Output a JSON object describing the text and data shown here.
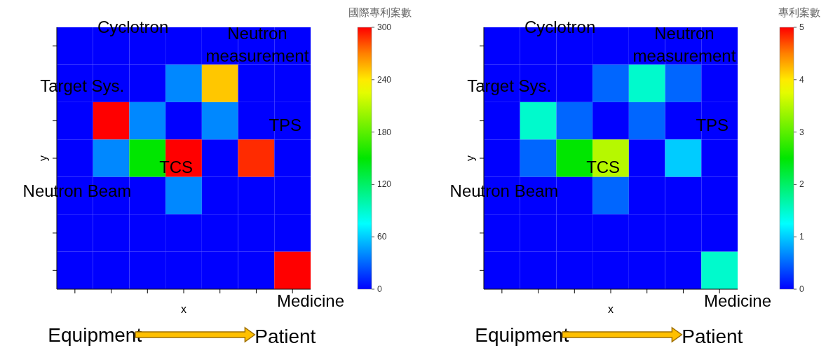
{
  "chart_data": [
    {
      "type": "heatmap",
      "xlabel": "x",
      "ylabel": "y",
      "clabel": "國際專利案數",
      "categories": [
        null,
        null,
        null,
        null,
        null,
        null,
        null
      ],
      "y_categories": [
        null,
        null,
        null,
        null,
        null,
        null,
        null
      ],
      "cells": [
        [
          0,
          0,
          0,
          0,
          0,
          0,
          0
        ],
        [
          0,
          0,
          0,
          40,
          250,
          0,
          0
        ],
        [
          0,
          320,
          40,
          0,
          40,
          0,
          0
        ],
        [
          0,
          40,
          150,
          300,
          0,
          290,
          0
        ],
        [
          0,
          0,
          0,
          40,
          0,
          0,
          0
        ],
        [
          0,
          0,
          0,
          0,
          0,
          0,
          0
        ],
        [
          0,
          0,
          0,
          0,
          0,
          0,
          300
        ]
      ],
      "clim": [
        0,
        300
      ],
      "cticks": [
        0,
        60,
        120,
        180,
        240,
        300
      ],
      "annotations": [
        "Cyclotron",
        "Neutron measurement",
        "Target Sys.",
        "TPS",
        "TCS",
        "Neutron Beam",
        "Medicine",
        "Equipment",
        "Patient"
      ]
    },
    {
      "type": "heatmap",
      "xlabel": "x",
      "ylabel": "y",
      "clabel": "專利案數",
      "categories": [
        null,
        null,
        null,
        null,
        null,
        null,
        null
      ],
      "y_categories": [
        null,
        null,
        null,
        null,
        null,
        null,
        null
      ],
      "cells": [
        [
          0,
          0,
          0,
          0,
          0,
          0,
          0
        ],
        [
          0,
          0,
          0,
          0.5,
          1.5,
          0.5,
          0
        ],
        [
          0,
          1.5,
          0.5,
          0,
          0.5,
          0,
          0
        ],
        [
          0,
          0.5,
          2.5,
          3.5,
          0,
          1,
          0
        ],
        [
          0,
          0,
          0,
          0.5,
          0,
          0,
          0
        ],
        [
          0,
          0,
          0,
          0,
          0,
          0,
          0
        ],
        [
          0,
          0,
          0,
          0,
          0,
          0,
          1.5
        ]
      ],
      "clim": [
        0,
        5
      ],
      "cticks": [
        0,
        1,
        2,
        3,
        4,
        5
      ],
      "annotations": [
        "Cyclotron",
        "Neutron measurement",
        "Target Sys.",
        "TPS",
        "TCS",
        "Neutron Beam",
        "Medicine",
        "Equipment",
        "Patient"
      ]
    }
  ]
}
